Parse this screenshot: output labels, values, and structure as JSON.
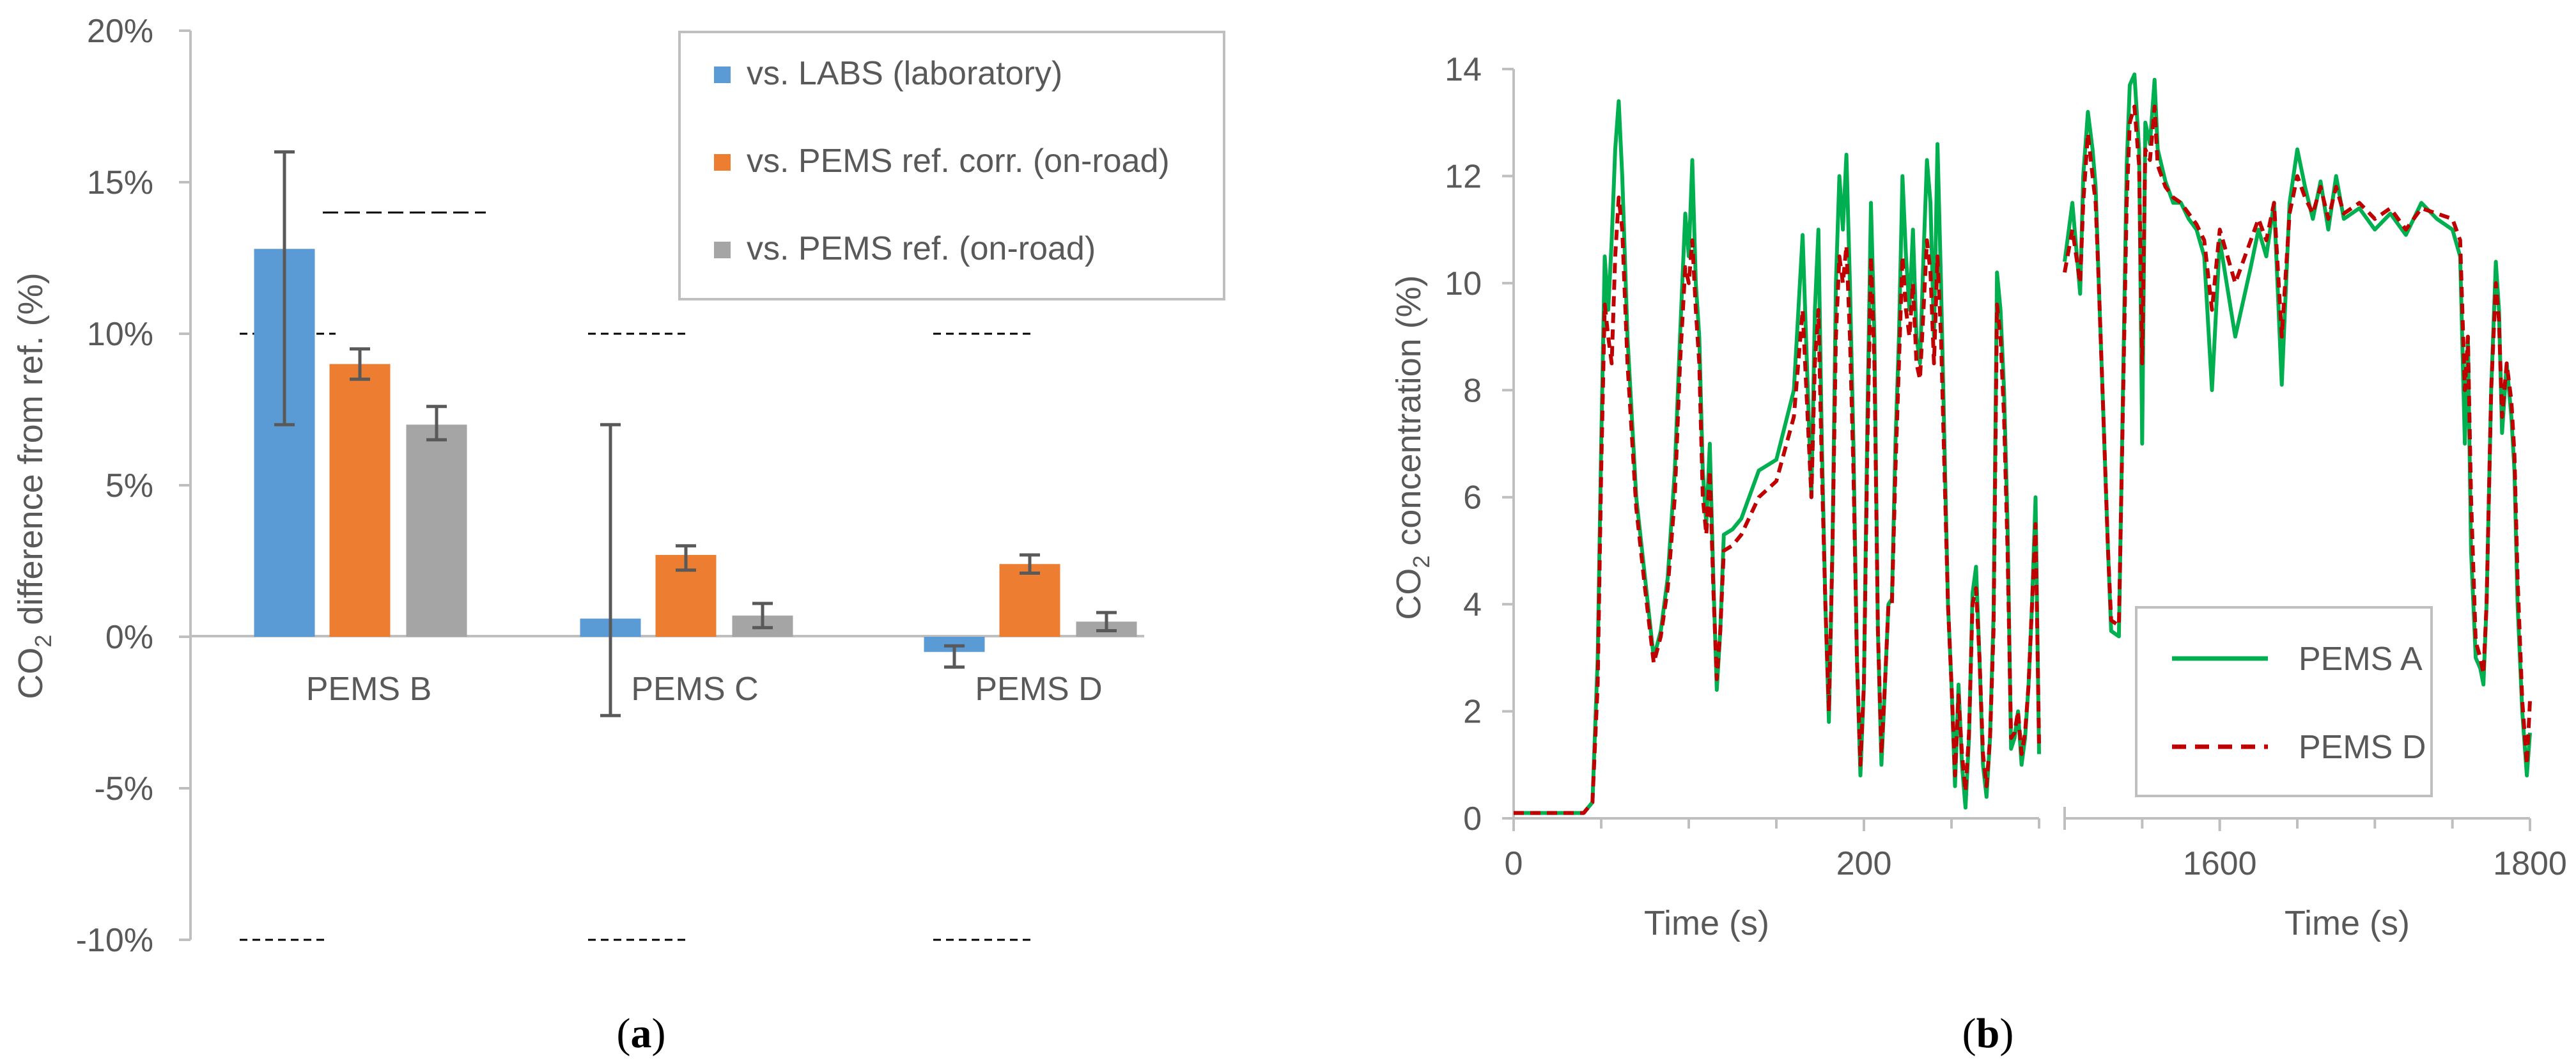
{
  "colors": {
    "labs": "#5B9BD5",
    "pems_ref_corr": "#ED7D31",
    "pems_ref": "#A5A5A5",
    "pems_a": "#00B050",
    "pems_d": "#C00000",
    "axis": "#BFBFBF",
    "text": "#595959"
  },
  "chart_data": [
    {
      "panel": "a",
      "type": "bar",
      "subtitle_letter": "a",
      "ylabel_main": "CO",
      "ylabel_sub": "2",
      "ylabel_rest": " difference from ref. (%)",
      "ylim": [
        -10,
        20
      ],
      "yticks": [
        "-10%",
        "-5%",
        "0%",
        "5%",
        "10%",
        "15%",
        "20%"
      ],
      "ytick_values": [
        -10,
        -5,
        0,
        5,
        10,
        15,
        20
      ],
      "categories": [
        "PEMS B",
        "PEMS C",
        "PEMS D"
      ],
      "legend_position": "top-right",
      "series": [
        {
          "name": "vs. LABS (laboratory)",
          "values": [
            12.8,
            0.6,
            -0.5
          ],
          "err_low": [
            7.0,
            -2.6,
            -1.0
          ],
          "err_high": [
            16.0,
            7.0,
            -0.3
          ]
        },
        {
          "name": "vs. PEMS ref. corr. (on-road)",
          "values": [
            9.0,
            2.7,
            2.4
          ],
          "err_low": [
            8.5,
            2.2,
            2.1
          ],
          "err_high": [
            9.5,
            3.0,
            2.7
          ]
        },
        {
          "name": "vs. PEMS ref. (on-road)",
          "values": [
            7.0,
            0.7,
            0.5
          ],
          "err_low": [
            6.5,
            0.3,
            0.2
          ],
          "err_high": [
            7.6,
            1.1,
            0.8
          ]
        }
      ],
      "limits": [
        {
          "category": "PEMS B",
          "lower": -10,
          "upper": 10,
          "upper_alt": 14
        },
        {
          "category": "PEMS C",
          "lower": -10,
          "upper": 10
        },
        {
          "category": "PEMS D",
          "lower": -10,
          "upper": 10
        }
      ]
    },
    {
      "panel": "b",
      "type": "line",
      "subtitle_letter": "b",
      "ylabel_main": "CO",
      "ylabel_sub": "2",
      "ylabel_rest": " concentration (%)",
      "ylim": [
        0,
        14
      ],
      "yticks": [
        "0",
        "2",
        "4",
        "6",
        "8",
        "10",
        "12",
        "14"
      ],
      "ytick_values": [
        0,
        2,
        4,
        6,
        8,
        10,
        12,
        14
      ],
      "xlabel": "Time (s)",
      "left_xlim": [
        0,
        300
      ],
      "left_xticks": [
        "0",
        "200"
      ],
      "left_xtick_values": [
        0,
        200
      ],
      "right_xlim": [
        1500,
        1800
      ],
      "right_xticks": [
        "1600",
        "1800"
      ],
      "right_xtick_values": [
        1600,
        1800
      ],
      "legend_position": "bottom-right",
      "series": [
        {
          "name": "PEMS A",
          "left": {
            "x": [
              0,
              40,
              45,
              48,
              50,
              52,
              54,
              56,
              58,
              60,
              62,
              65,
              70,
              75,
              80,
              84,
              88,
              92,
              95,
              98,
              100,
              102,
              104,
              106,
              108,
              110,
              112,
              114,
              116,
              118,
              120,
              125,
              130,
              140,
              150,
              160,
              165,
              170,
              172,
              174,
              176,
              178,
              180,
              182,
              184,
              186,
              188,
              190,
              192,
              194,
              196,
              198,
              200,
              202,
              204,
              206,
              208,
              210,
              212,
              214,
              216,
              218,
              220,
              222,
              224,
              226,
              228,
              230,
              232,
              234,
              236,
              238,
              240,
              242,
              244,
              246,
              248,
              250,
              252,
              254,
              256,
              258,
              260,
              262,
              264,
              266,
              268,
              270,
              272,
              274,
              276,
              278,
              280,
              282,
              284,
              286,
              288,
              290,
              292,
              294,
              296,
              298,
              300
            ],
            "y": [
              0.1,
              0.1,
              0.3,
              3.0,
              7.0,
              10.5,
              9.5,
              10.8,
              12.5,
              13.4,
              12.0,
              9.0,
              6.0,
              4.5,
              3.0,
              3.5,
              4.5,
              6.5,
              9.0,
              11.3,
              10.5,
              12.3,
              10.0,
              9.0,
              6.5,
              5.5,
              7.0,
              4.5,
              2.4,
              3.5,
              5.3,
              5.4,
              5.6,
              6.5,
              6.7,
              8.0,
              10.9,
              6.0,
              9.5,
              11.0,
              7.0,
              4.0,
              1.8,
              5.0,
              10.0,
              12.0,
              11.0,
              12.4,
              10.0,
              7.0,
              3.0,
              0.8,
              2.5,
              7.5,
              11.5,
              9.0,
              3.5,
              1.0,
              2.5,
              4.0,
              4.1,
              7.0,
              9.0,
              12.0,
              10.5,
              9.5,
              11.0,
              9.0,
              8.5,
              10.5,
              12.3,
              11.5,
              9.0,
              12.6,
              10.0,
              7.0,
              4.0,
              2.5,
              0.6,
              2.5,
              1.0,
              0.2,
              1.5,
              4.2,
              4.7,
              3.0,
              1.0,
              0.4,
              1.5,
              3.8,
              10.2,
              9.5,
              8.0,
              5.5,
              1.3,
              1.5,
              2.0,
              1.0,
              1.5,
              2.5,
              4.0,
              6.0,
              1.2
            ]
          },
          "right": {
            "x": [
              1500,
              1505,
              1510,
              1512,
              1515,
              1518,
              1520,
              1522,
              1525,
              1528,
              1530,
              1535,
              1540,
              1542,
              1545,
              1548,
              1550,
              1552,
              1555,
              1558,
              1560,
              1565,
              1570,
              1575,
              1580,
              1585,
              1590,
              1595,
              1600,
              1610,
              1620,
              1625,
              1630,
              1635,
              1640,
              1645,
              1650,
              1655,
              1660,
              1665,
              1670,
              1675,
              1680,
              1690,
              1700,
              1710,
              1720,
              1730,
              1740,
              1750,
              1755,
              1758,
              1760,
              1762,
              1765,
              1768,
              1770,
              1772,
              1775,
              1778,
              1780,
              1782,
              1785,
              1788,
              1790,
              1792,
              1795,
              1798,
              1800
            ],
            "y": [
              10.4,
              11.5,
              9.8,
              12.0,
              13.2,
              12.5,
              11.8,
              10.0,
              7.5,
              5.0,
              3.5,
              3.4,
              12.2,
              13.7,
              13.9,
              12.5,
              7.0,
              13.0,
              12.6,
              13.8,
              12.5,
              11.9,
              11.5,
              11.5,
              11.2,
              11.0,
              10.5,
              8.0,
              10.8,
              9.0,
              10.3,
              11.0,
              10.5,
              11.5,
              8.1,
              11.5,
              12.5,
              11.8,
              11.2,
              11.9,
              11.0,
              12.0,
              11.2,
              11.4,
              11.0,
              11.3,
              10.9,
              11.5,
              11.2,
              11.0,
              10.5,
              7.0,
              9.0,
              5.0,
              3.0,
              2.8,
              2.5,
              4.0,
              8.0,
              10.4,
              9.5,
              7.2,
              8.5,
              7.5,
              6.5,
              4.0,
              2.0,
              0.8,
              1.6
            ]
          }
        },
        {
          "name": "PEMS D",
          "left": {
            "x": [
              0,
              40,
              45,
              48,
              50,
              52,
              54,
              56,
              58,
              60,
              62,
              65,
              70,
              75,
              80,
              84,
              88,
              92,
              95,
              98,
              100,
              102,
              104,
              106,
              108,
              110,
              112,
              114,
              116,
              118,
              120,
              125,
              130,
              140,
              150,
              160,
              165,
              170,
              172,
              174,
              176,
              178,
              180,
              182,
              184,
              186,
              188,
              190,
              192,
              194,
              196,
              198,
              200,
              202,
              204,
              206,
              208,
              210,
              212,
              214,
              216,
              218,
              220,
              222,
              224,
              226,
              228,
              230,
              232,
              234,
              236,
              238,
              240,
              242,
              244,
              246,
              248,
              250,
              252,
              254,
              256,
              258,
              260,
              262,
              264,
              266,
              268,
              270,
              272,
              274,
              276,
              278,
              280,
              282,
              284,
              286,
              288,
              290,
              292,
              294,
              296,
              298,
              300
            ],
            "y": [
              0.1,
              0.1,
              0.3,
              2.5,
              6.5,
              9.6,
              9.0,
              8.5,
              10.5,
              11.6,
              11.0,
              8.5,
              5.8,
              4.3,
              2.9,
              3.4,
              4.3,
              6.0,
              8.5,
              10.3,
              10.0,
              10.8,
              9.5,
              8.5,
              6.0,
              5.3,
              6.5,
              4.3,
              2.6,
              3.5,
              5.0,
              5.1,
              5.3,
              6.0,
              6.3,
              7.5,
              9.5,
              6.0,
              8.5,
              9.5,
              6.5,
              4.0,
              2.0,
              5.0,
              9.0,
              10.5,
              10.0,
              10.7,
              9.0,
              6.5,
              3.0,
              1.0,
              2.5,
              7.0,
              10.5,
              8.5,
              3.5,
              1.2,
              2.5,
              4.0,
              4.0,
              6.5,
              8.5,
              10.5,
              9.5,
              9.0,
              10.0,
              8.5,
              8.2,
              9.5,
              10.8,
              10.2,
              8.5,
              10.5,
              9.0,
              6.5,
              4.0,
              2.5,
              0.8,
              2.3,
              1.2,
              0.5,
              1.6,
              4.0,
              4.3,
              3.0,
              1.2,
              0.6,
              1.5,
              3.5,
              9.6,
              9.0,
              7.5,
              5.0,
              1.5,
              1.6,
              2.0,
              1.2,
              1.6,
              2.5,
              4.0,
              5.5,
              1.4
            ]
          },
          "right": {
            "x": [
              1500,
              1505,
              1510,
              1512,
              1515,
              1518,
              1520,
              1522,
              1525,
              1528,
              1530,
              1535,
              1540,
              1542,
              1545,
              1548,
              1550,
              1552,
              1555,
              1558,
              1560,
              1565,
              1570,
              1575,
              1580,
              1585,
              1590,
              1595,
              1600,
              1610,
              1620,
              1625,
              1630,
              1635,
              1640,
              1645,
              1650,
              1655,
              1660,
              1665,
              1670,
              1675,
              1680,
              1690,
              1700,
              1710,
              1720,
              1730,
              1740,
              1750,
              1755,
              1758,
              1760,
              1762,
              1765,
              1768,
              1770,
              1772,
              1775,
              1778,
              1780,
              1782,
              1785,
              1788,
              1790,
              1792,
              1795,
              1798,
              1800
            ],
            "y": [
              10.2,
              11.0,
              10.0,
              11.5,
              12.8,
              12.0,
              11.5,
              10.0,
              7.5,
              5.0,
              3.7,
              3.6,
              11.5,
              13.0,
              13.3,
              12.2,
              8.5,
              12.5,
              12.3,
              13.3,
              12.2,
              11.8,
              11.6,
              11.5,
              11.3,
              11.1,
              10.8,
              9.5,
              11.0,
              10.0,
              10.8,
              11.2,
              10.8,
              11.5,
              9.0,
              11.3,
              12.0,
              11.6,
              11.3,
              11.8,
              11.2,
              11.8,
              11.3,
              11.5,
              11.2,
              11.4,
              11.0,
              11.4,
              11.3,
              11.2,
              10.8,
              8.0,
              9.0,
              6.0,
              3.3,
              3.0,
              2.7,
              4.0,
              8.0,
              10.0,
              9.3,
              7.5,
              8.5,
              7.8,
              6.8,
              4.5,
              2.2,
              1.0,
              2.2
            ]
          }
        }
      ]
    }
  ]
}
